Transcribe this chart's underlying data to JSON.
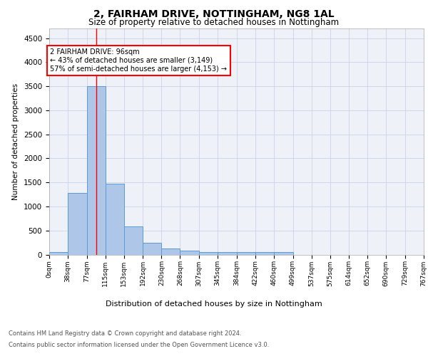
{
  "title1": "2, FAIRHAM DRIVE, NOTTINGHAM, NG8 1AL",
  "title2": "Size of property relative to detached houses in Nottingham",
  "xlabel": "Distribution of detached houses by size in Nottingham",
  "ylabel": "Number of detached properties",
  "bin_edges": [
    0,
    38,
    77,
    115,
    153,
    192,
    230,
    268,
    307,
    345,
    384,
    422,
    460,
    499,
    537,
    575,
    614,
    652,
    690,
    729,
    767
  ],
  "bar_heights": [
    50,
    1280,
    3500,
    1480,
    580,
    245,
    130,
    80,
    50,
    45,
    45,
    45,
    50,
    0,
    0,
    0,
    0,
    0,
    0,
    0
  ],
  "bar_color": "#aec6e8",
  "bar_edgecolor": "#5b9bd5",
  "bar_linewidth": 0.7,
  "grid_color": "#c8d4e8",
  "bg_color": "#eef2f8",
  "red_line_x": 96,
  "annotation_text": "2 FAIRHAM DRIVE: 96sqm\n← 43% of detached houses are smaller (3,149)\n57% of semi-detached houses are larger (4,153) →",
  "annotation_box_color": "white",
  "annotation_border_color": "red",
  "ylim": [
    0,
    4700
  ],
  "yticks": [
    0,
    500,
    1000,
    1500,
    2000,
    2500,
    3000,
    3500,
    4000,
    4500
  ],
  "footer1": "Contains HM Land Registry data © Crown copyright and database right 2024.",
  "footer2": "Contains public sector information licensed under the Open Government Licence v3.0."
}
